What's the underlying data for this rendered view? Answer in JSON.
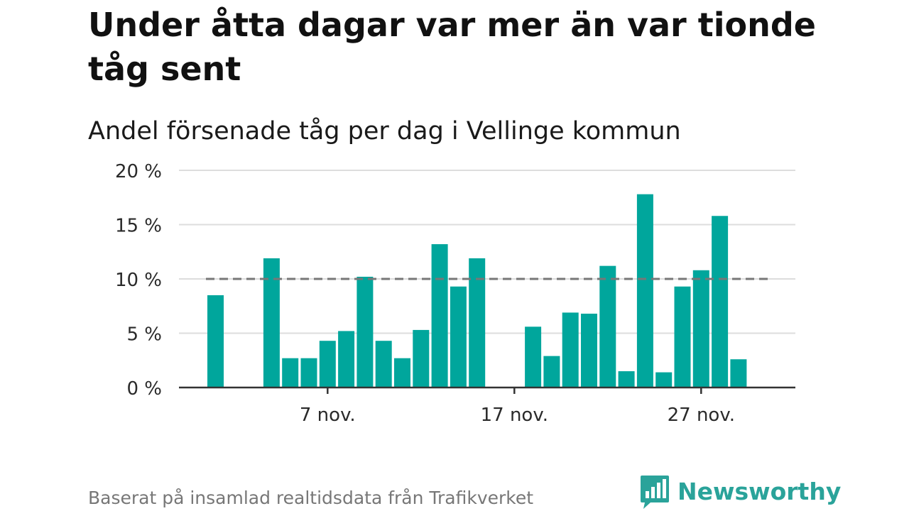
{
  "title": "Under åtta dagar var mer än var tionde tåg sent",
  "subtitle": "Andel försenade tåg per dag i Vellinge kommun",
  "source": "Baserat på insamlad realtidsdata från Trafikverket",
  "brand": {
    "name": "Newsworthy",
    "color": "#2aa39a"
  },
  "colors": {
    "bar": "#00a69c",
    "reference_line": "#777777",
    "grid": "#dddddd",
    "axis": "#333333"
  },
  "chart_data": {
    "type": "bar",
    "x": [
      "1 nov.",
      "2 nov.",
      "3 nov.",
      "4 nov.",
      "5 nov.",
      "6 nov.",
      "7 nov.",
      "8 nov.",
      "9 nov.",
      "10 nov.",
      "11 nov.",
      "12 nov.",
      "13 nov.",
      "14 nov.",
      "15 nov.",
      "16 nov.",
      "17 nov.",
      "18 nov.",
      "19 nov.",
      "20 nov.",
      "21 nov.",
      "22 nov.",
      "23 nov.",
      "24 nov.",
      "25 nov.",
      "26 nov.",
      "27 nov.",
      "28 nov.",
      "29 nov.",
      "30 nov."
    ],
    "values": [
      8.5,
      null,
      null,
      11.9,
      2.7,
      2.7,
      4.3,
      5.2,
      10.2,
      4.3,
      2.7,
      5.3,
      13.2,
      9.3,
      11.9,
      null,
      null,
      5.6,
      2.9,
      6.9,
      6.8,
      11.2,
      1.5,
      17.8,
      1.4,
      9.3,
      10.8,
      15.8,
      2.6,
      null
    ],
    "xticks": [
      "7 nov.",
      "17 nov.",
      "27 nov."
    ],
    "yticks": [
      "0 %",
      "5 %",
      "10 %",
      "15 %",
      "20 %"
    ],
    "ylim": [
      0,
      20
    ],
    "reference_line": 10,
    "grid": true
  }
}
